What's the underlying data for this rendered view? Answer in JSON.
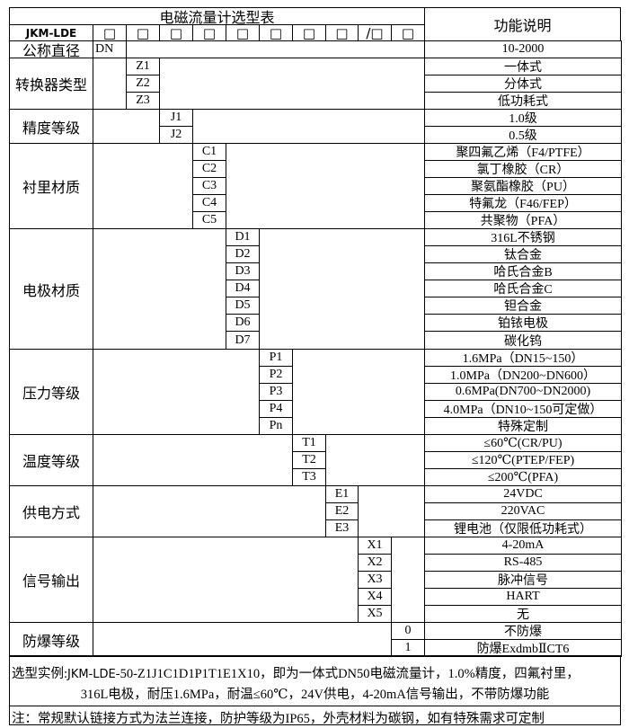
{
  "header": {
    "title": "电磁流量计选型表",
    "function_title": "功能说明",
    "model_prefix": "JKM-LDE",
    "code_boxes": [
      "□",
      "□",
      "□",
      "□",
      "□",
      "□",
      "□",
      "□",
      "/□",
      "□"
    ]
  },
  "sections": [
    {
      "label": "公称直径",
      "column": 1,
      "rows": [
        {
          "code": "DN",
          "desc": "10-2000"
        }
      ]
    },
    {
      "label": "转换器类型",
      "column": 2,
      "rows": [
        {
          "code": "Z1",
          "desc": "一体式"
        },
        {
          "code": "Z2",
          "desc": "分体式"
        },
        {
          "code": "Z3",
          "desc": "低功耗式"
        }
      ]
    },
    {
      "label": "精度等级",
      "column": 3,
      "rows": [
        {
          "code": "J1",
          "desc": "1.0级"
        },
        {
          "code": "J2",
          "desc": "0.5级"
        }
      ]
    },
    {
      "label": "衬里材质",
      "column": 4,
      "rows": [
        {
          "code": "C1",
          "desc": "聚四氟乙烯（F4/PTFE）"
        },
        {
          "code": "C2",
          "desc": "氯丁橡胶（CR）"
        },
        {
          "code": "C3",
          "desc": "聚氨酯橡胶（PU）"
        },
        {
          "code": "C4",
          "desc": "特氟龙（F46/FEP）"
        },
        {
          "code": "C5",
          "desc": "共聚物（PFA）"
        }
      ]
    },
    {
      "label": "电极材质",
      "column": 5,
      "rows": [
        {
          "code": "D1",
          "desc": "316L不锈钢"
        },
        {
          "code": "D2",
          "desc": "钛合金"
        },
        {
          "code": "D3",
          "desc": "哈氏合金B"
        },
        {
          "code": "D4",
          "desc": "哈氏合金C"
        },
        {
          "code": "D5",
          "desc": "钽合金"
        },
        {
          "code": "D6",
          "desc": "铂铱电极"
        },
        {
          "code": "D7",
          "desc": "碳化钨"
        }
      ]
    },
    {
      "label": "压力等级",
      "column": 6,
      "rows": [
        {
          "code": "P1",
          "desc": "1.6MPa（DN15~150）"
        },
        {
          "code": "P2",
          "desc": "1.0MPa（DN200~DN600）"
        },
        {
          "code": "P3",
          "desc": "0.6MPa(DN700~DN2000)"
        },
        {
          "code": "P4",
          "desc": "4.0MPa（DN10~150可定做）"
        },
        {
          "code": "Pn",
          "desc": "特殊定制"
        }
      ]
    },
    {
      "label": "温度等级",
      "column": 7,
      "rows": [
        {
          "code": "T1",
          "desc": "≤60℃(CR/PU)"
        },
        {
          "code": "T2",
          "desc": "≤120℃(PTEP/FEP)"
        },
        {
          "code": "T3",
          "desc": "≤200℃(PFA)"
        }
      ]
    },
    {
      "label": "供电方式",
      "column": 8,
      "rows": [
        {
          "code": "E1",
          "desc": "24VDC"
        },
        {
          "code": "E2",
          "desc": "220VAC"
        },
        {
          "code": "E3",
          "desc": "锂电池（仅限低功耗式）"
        }
      ]
    },
    {
      "label": "信号输出",
      "column": 9,
      "rows": [
        {
          "code": "X1",
          "desc": "4-20mA"
        },
        {
          "code": "X2",
          "desc": "RS-485"
        },
        {
          "code": "X3",
          "desc": "脉冲信号"
        },
        {
          "code": "X4",
          "desc": "HART"
        },
        {
          "code": "X5",
          "desc": "无"
        }
      ]
    },
    {
      "label": "防爆等级",
      "column": 10,
      "rows": [
        {
          "code": "0",
          "desc": "不防爆"
        },
        {
          "code": "1",
          "desc": "防爆ExdmbⅡCT6"
        }
      ]
    }
  ],
  "example": {
    "prefix": "选型实例:",
    "model": "JKM-LDE",
    "line1_rest": "-50-Z1J1C1D1P1T1E1X10，即为一体式DN50电磁流量计，1.0%精度，四氟衬里，",
    "line2": "316L电极，耐压1.6MPa，耐温≤60℃，24V供电，4-20mA信号输出，不带防爆功能"
  },
  "note": "注：常规默认链接方式为法兰连接，防护等级为IP65，外壳材料为碳钢，如有特殊需求可定制"
}
